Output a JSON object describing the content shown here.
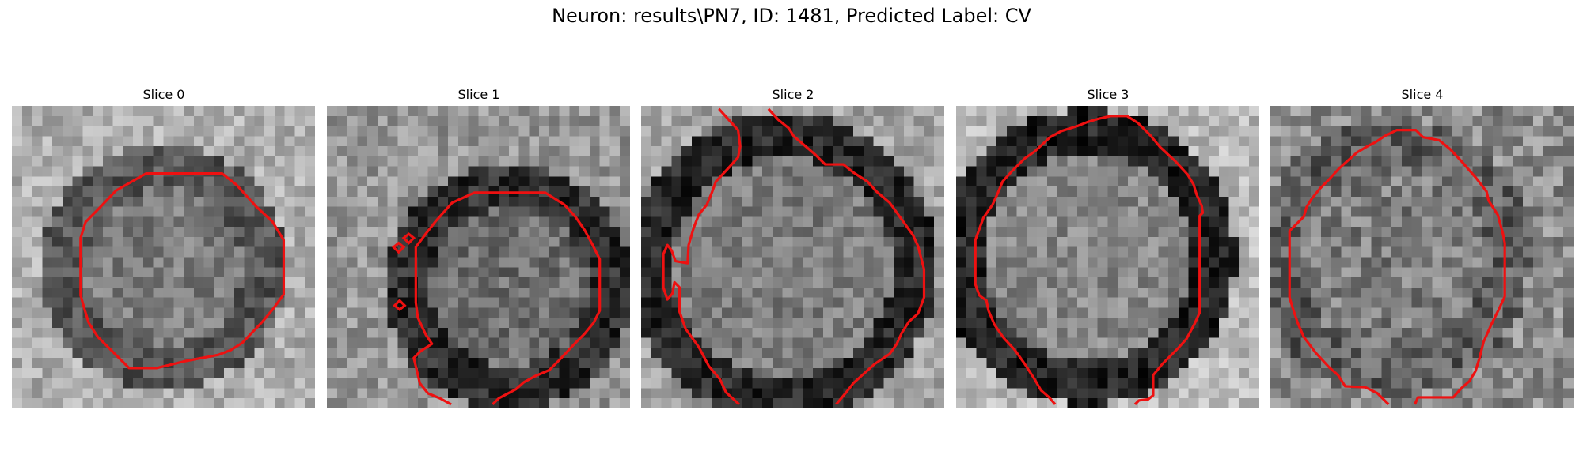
{
  "figure": {
    "title": "Neuron: results\\PN7, ID: 1481, Predicted Label: CV"
  },
  "colors": {
    "contour": "#ee1111",
    "background": "#ffffff"
  },
  "image_style": "grayscale",
  "slices": [
    {
      "title": "Slice 0"
    },
    {
      "title": "Slice 1"
    },
    {
      "title": "Slice 2"
    },
    {
      "title": "Slice 3"
    },
    {
      "title": "Slice 4"
    }
  ]
}
